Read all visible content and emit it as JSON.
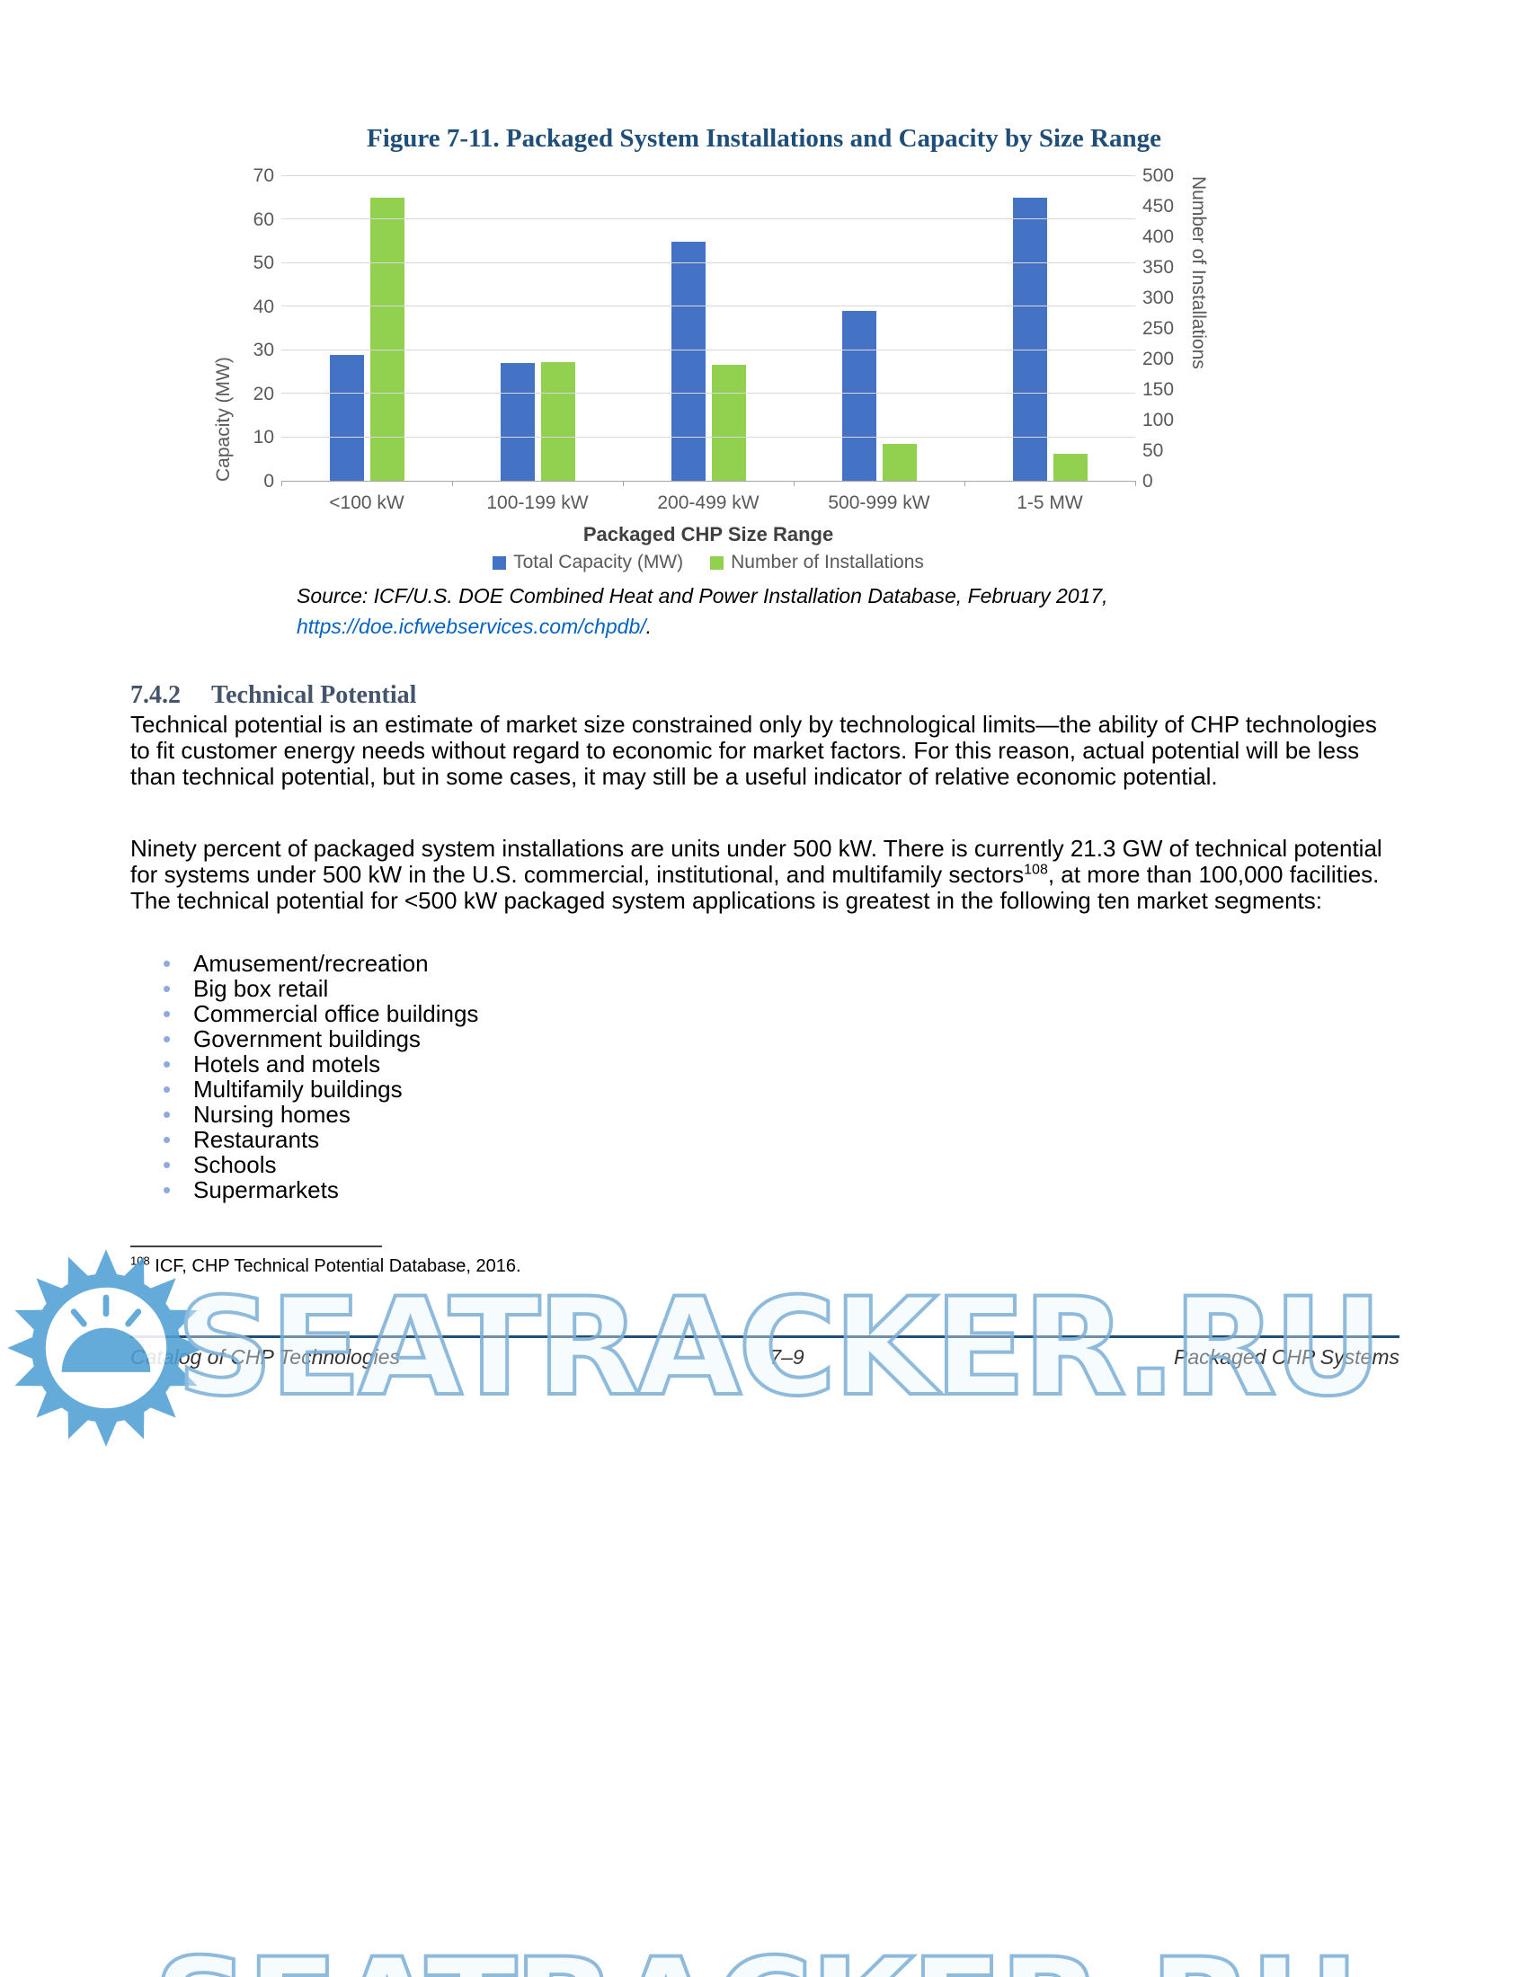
{
  "figure": {
    "caption": "Figure 7-11. Packaged System Installations and Capacity by Size Range",
    "source_line1": "Source: ICF/U.S. DOE Combined Heat and Power Installation Database, February 2017,",
    "source_link": "https://doe.icfwebservices.com/chpdb/",
    "source_suffix": "."
  },
  "chart_data": {
    "type": "bar",
    "title": "Figure 7-11. Packaged System Installations and Capacity by Size Range",
    "categories": [
      "<100 kW",
      "100-199 kW",
      "200-499 kW",
      "500-999 kW",
      "1-5 MW"
    ],
    "series": [
      {
        "name": "Total Capacity (MW)",
        "axis": "left",
        "color": "#4472C4",
        "values": [
          29,
          27,
          55,
          39,
          65
        ]
      },
      {
        "name": "Number of Installations",
        "axis": "right",
        "color": "#92D050",
        "values": [
          465,
          195,
          190,
          60,
          45
        ]
      }
    ],
    "left_axis": {
      "label": "Capacity (MW)",
      "min": 0,
      "max": 70,
      "ticks": [
        0,
        10,
        20,
        30,
        40,
        50,
        60,
        70
      ]
    },
    "right_axis": {
      "label": "Number of Installations",
      "min": 0,
      "max": 500,
      "ticks": [
        0,
        50,
        100,
        150,
        200,
        250,
        300,
        350,
        400,
        450,
        500
      ]
    },
    "xlabel": "Packaged CHP Size Range",
    "legend_position": "bottom",
    "grid": true
  },
  "sections": {
    "technical_potential": {
      "heading_number": "7.4.2",
      "heading_title": "Technical Potential",
      "para1": "Technical potential is an estimate of market size constrained only by technological limits—the ability of CHP technologies to fit customer energy needs without regard to economic for market factors. For this reason, actual potential will be less than technical potential, but in some cases, it may still be a useful indicator of relative economic potential.",
      "para2_before_sup": "Ninety percent of packaged system installations are units under 500 kW. There is currently 21.3 GW of technical potential for systems under 500 kW in the U.S. commercial, institutional, and multifamily sectors",
      "para2_sup": "108",
      "para2_after_sup": ", at more than 100,000 facilities. The technical potential for <500 kW packaged system applications is greatest in the following ten market segments:",
      "bullets": [
        "Amusement/recreation",
        "Big box retail",
        "Commercial office buildings",
        "Government buildings",
        "Hotels and motels",
        "Multifamily buildings",
        "Nursing homes",
        "Restaurants",
        "Schools",
        "Supermarkets"
      ]
    }
  },
  "page": {
    "footnote": {
      "marker": "108",
      "text": " ICF, CHP Technical Potential Database, 2016."
    },
    "footer": {
      "left": "Catalog of CHP Technologies",
      "center": "7–9",
      "right": "Packaged CHP Systems"
    },
    "watermark": {
      "text": "SEATRACKER.RU"
    }
  },
  "colors": {
    "capacity_bar": "#4472C4",
    "installations_bar": "#92D050",
    "figure_title": "#1F4E79",
    "section_heading": "#44546A",
    "link": "#0563C1",
    "footer_rule": "#1F4E79",
    "watermark": "#7FB1D8",
    "axis_text": "#595959"
  }
}
